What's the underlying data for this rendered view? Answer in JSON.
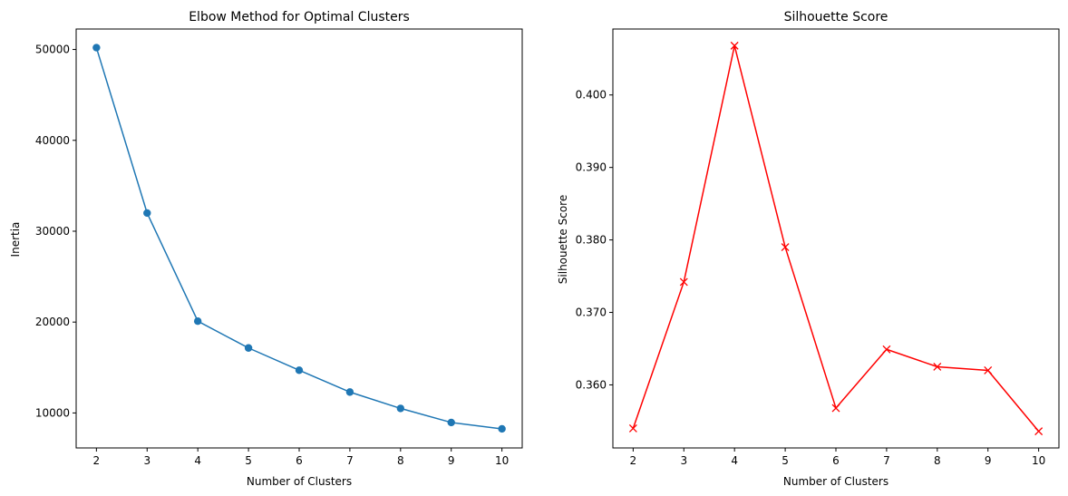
{
  "chart_data": [
    {
      "type": "line",
      "title": "Elbow Method for Optimal Clusters",
      "xlabel": "Number of Clusters",
      "ylabel": "Inertia",
      "x": [
        2,
        3,
        4,
        5,
        6,
        7,
        8,
        9,
        10
      ],
      "xlim": [
        1.6,
        10.4
      ],
      "ylim": [
        6150,
        52250
      ],
      "xticks": [
        2,
        3,
        4,
        5,
        6,
        7,
        8,
        9,
        10
      ],
      "yticks": [
        10000,
        20000,
        30000,
        40000,
        50000
      ],
      "grid": false,
      "series": [
        {
          "values": [
            50200,
            32000,
            20100,
            17150,
            14700,
            12300,
            10500,
            8950,
            8250
          ],
          "color": "#1f77b4",
          "marker": "circle"
        }
      ]
    },
    {
      "type": "line",
      "title": "Silhouette Score",
      "xlabel": "Number of Clusters",
      "ylabel": "Silhouette Score",
      "x": [
        2,
        3,
        4,
        5,
        6,
        7,
        8,
        9,
        10
      ],
      "xlim": [
        1.6,
        10.4
      ],
      "ylim": [
        0.3513,
        0.4091
      ],
      "xticks": [
        2,
        3,
        4,
        5,
        6,
        7,
        8,
        9,
        10
      ],
      "yticks": [
        0.36,
        0.37,
        0.38,
        0.39,
        0.4
      ],
      "ytick_labels": [
        "0.360",
        "0.370",
        "0.380",
        "0.390",
        "0.400"
      ],
      "grid": false,
      "series": [
        {
          "values": [
            0.354,
            0.3742,
            0.4068,
            0.379,
            0.3568,
            0.3649,
            0.3625,
            0.362,
            0.3536
          ],
          "color": "#ff0000",
          "marker": "x"
        }
      ]
    }
  ]
}
